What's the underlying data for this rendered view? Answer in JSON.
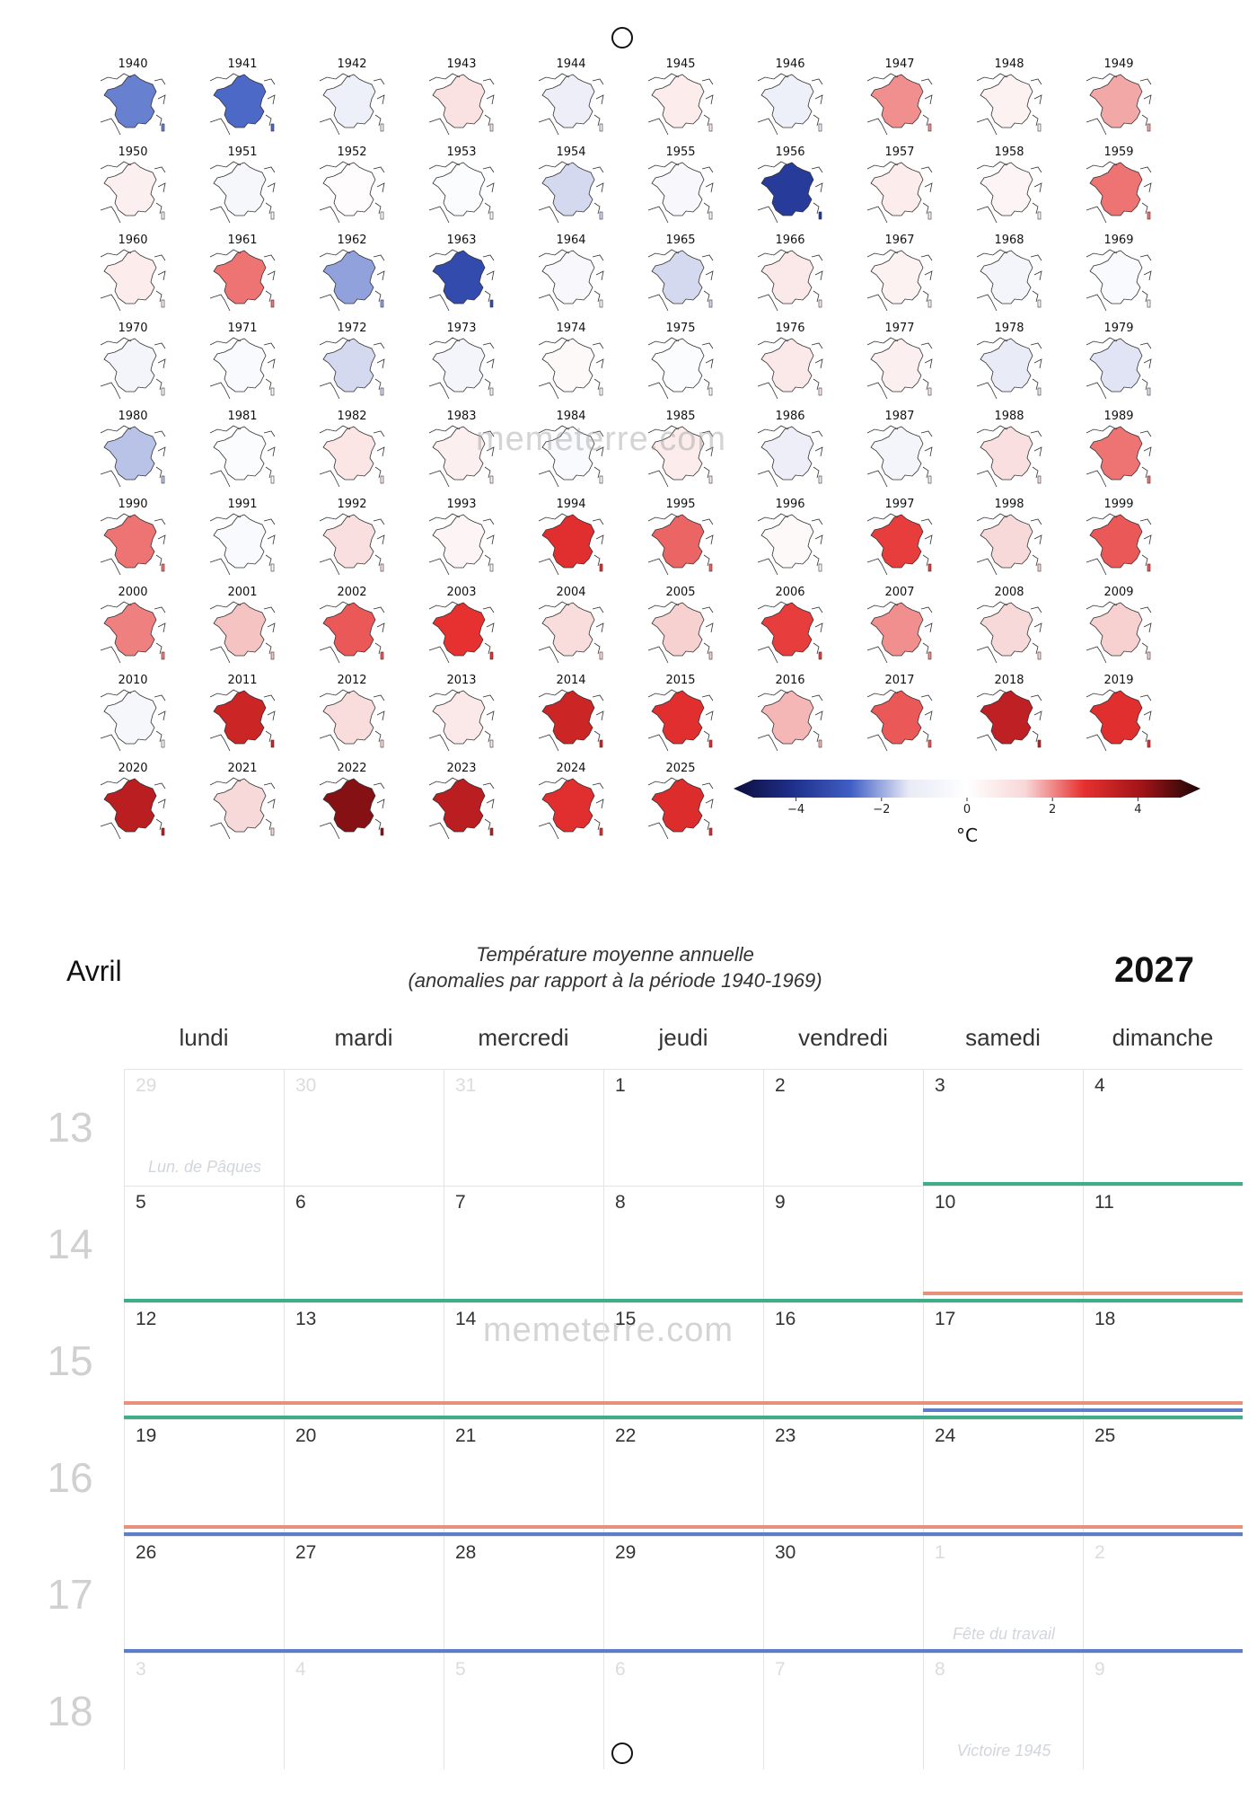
{
  "colors": {
    "accent_green": "#3fae88",
    "accent_salmon": "#e8907a",
    "accent_blue": "#5c7ec9",
    "week_number": "#d0d0d0",
    "out_of_month": "#dcdcdc"
  },
  "icons": {
    "punch_hole": "ring-icon"
  },
  "chart_data": {
    "type": "heatmap",
    "description_type": "small-multiple choropleth maps of France",
    "title": "Température moyenne annuelle",
    "subtitle": "(anomalies par rapport à la période 1940-1969)",
    "years": [
      1940,
      1941,
      1942,
      1943,
      1944,
      1945,
      1946,
      1947,
      1948,
      1949,
      1950,
      1951,
      1952,
      1953,
      1954,
      1955,
      1956,
      1957,
      1958,
      1959,
      1960,
      1961,
      1962,
      1963,
      1964,
      1965,
      1966,
      1967,
      1968,
      1969,
      1970,
      1971,
      1972,
      1973,
      1974,
      1975,
      1976,
      1977,
      1978,
      1979,
      1980,
      1981,
      1982,
      1983,
      1984,
      1985,
      1986,
      1987,
      1988,
      1989,
      1990,
      1991,
      1992,
      1993,
      1994,
      1995,
      1996,
      1997,
      1998,
      1999,
      2000,
      2001,
      2002,
      2003,
      2004,
      2005,
      2006,
      2007,
      2008,
      2009,
      2010,
      2011,
      2012,
      2013,
      2014,
      2015,
      2016,
      2017,
      2018,
      2019,
      2020,
      2021,
      2022,
      2023,
      2024,
      2025
    ],
    "anomalies": [
      -2.2,
      -2.4,
      -0.9,
      0.9,
      -1.0,
      0.6,
      -0.9,
      1.8,
      0.4,
      1.6,
      0.5,
      -0.5,
      0.1,
      -0.2,
      -1.4,
      -0.4,
      -3.4,
      0.6,
      0.3,
      2.0,
      0.6,
      2.0,
      -1.9,
      -3.0,
      -0.4,
      -1.4,
      0.7,
      0.4,
      -0.6,
      -0.3,
      -0.6,
      -0.3,
      -1.4,
      -0.6,
      0.2,
      -0.2,
      0.7,
      0.5,
      -1.2,
      -1.3,
      -1.6,
      -0.2,
      0.8,
      0.5,
      -0.3,
      0.6,
      -1.0,
      -0.6,
      1.0,
      2.0,
      2.0,
      -0.3,
      1.0,
      0.3,
      2.6,
      2.1,
      0.2,
      2.4,
      1.2,
      2.2,
      1.9,
      1.4,
      2.2,
      2.5,
      1.1,
      1.3,
      2.4,
      1.8,
      1.2,
      1.3,
      -0.5,
      3.0,
      1.1,
      0.7,
      3.0,
      2.6,
      1.5,
      2.2,
      3.2,
      2.6,
      3.3,
      1.2,
      4.0,
      3.3,
      2.6,
      2.7
    ],
    "colorbar": {
      "ticks": [
        "−4",
        "−2",
        "0",
        "2",
        "4"
      ],
      "tick_values": [
        -4,
        -2,
        0,
        2,
        4
      ],
      "range": [
        -5,
        5
      ],
      "unit": "°C",
      "extend": "both",
      "colors": [
        "#0d0e3c",
        "#1e2f8a",
        "#3f5ec4",
        "#e8eaf6",
        "#ffffff",
        "#f8d7d7",
        "#e73030",
        "#a01418",
        "#1a0606"
      ]
    }
  },
  "header": {
    "month": "Avril",
    "year": "2027",
    "caption_line1": "Température moyenne annuelle",
    "caption_line2": "(anomalies par rapport à la période 1940-1969)"
  },
  "watermark": "memeterre.com",
  "calendar": {
    "weekdays": [
      "lundi",
      "mardi",
      "mercredi",
      "jeudi",
      "vendredi",
      "samedi",
      "dimanche"
    ],
    "weeks": [
      {
        "number": "13",
        "days": [
          {
            "n": "29",
            "out": true,
            "holiday": "Lun. de Pâques"
          },
          {
            "n": "30",
            "out": true
          },
          {
            "n": "31",
            "out": true
          },
          {
            "n": "1"
          },
          {
            "n": "2"
          },
          {
            "n": "3"
          },
          {
            "n": "4"
          }
        ]
      },
      {
        "number": "14",
        "days": [
          {
            "n": "5"
          },
          {
            "n": "6"
          },
          {
            "n": "7"
          },
          {
            "n": "8"
          },
          {
            "n": "9"
          },
          {
            "n": "10"
          },
          {
            "n": "11"
          }
        ]
      },
      {
        "number": "15",
        "days": [
          {
            "n": "12"
          },
          {
            "n": "13"
          },
          {
            "n": "14"
          },
          {
            "n": "15"
          },
          {
            "n": "16"
          },
          {
            "n": "17"
          },
          {
            "n": "18"
          }
        ]
      },
      {
        "number": "16",
        "days": [
          {
            "n": "19"
          },
          {
            "n": "20"
          },
          {
            "n": "21"
          },
          {
            "n": "22"
          },
          {
            "n": "23"
          },
          {
            "n": "24"
          },
          {
            "n": "25"
          }
        ]
      },
      {
        "number": "17",
        "days": [
          {
            "n": "26"
          },
          {
            "n": "27"
          },
          {
            "n": "28"
          },
          {
            "n": "29"
          },
          {
            "n": "30"
          },
          {
            "n": "1",
            "out": true,
            "holiday": "Fête du travail"
          },
          {
            "n": "2",
            "out": true
          }
        ]
      },
      {
        "number": "18",
        "days": [
          {
            "n": "3",
            "out": true
          },
          {
            "n": "4",
            "out": true
          },
          {
            "n": "5",
            "out": true
          },
          {
            "n": "6",
            "out": true
          },
          {
            "n": "7",
            "out": true
          },
          {
            "n": "8",
            "out": true,
            "holiday": "Victoire 1945"
          },
          {
            "n": "9",
            "out": true
          }
        ]
      }
    ],
    "period_lines": [
      {
        "week": 0,
        "from": 5,
        "to": 6,
        "color": "green",
        "slot": 0
      },
      {
        "week": 1,
        "from": 0,
        "to": 6,
        "color": "green",
        "slot": 0
      },
      {
        "week": 1,
        "from": 5,
        "to": 6,
        "color": "salmon",
        "slot": 1
      },
      {
        "week": 2,
        "from": 0,
        "to": 6,
        "color": "salmon",
        "slot": 2
      },
      {
        "week": 2,
        "from": 5,
        "to": 6,
        "color": "blue",
        "slot": 1
      },
      {
        "week": 2,
        "from": 0,
        "to": 6,
        "color": "green",
        "slot": 0
      },
      {
        "week": 3,
        "from": 0,
        "to": 6,
        "color": "salmon",
        "slot": 1
      },
      {
        "week": 3,
        "from": 0,
        "to": 6,
        "color": "blue",
        "slot": 0
      },
      {
        "week": 4,
        "from": 0,
        "to": 6,
        "color": "blue",
        "slot": 0
      }
    ]
  }
}
